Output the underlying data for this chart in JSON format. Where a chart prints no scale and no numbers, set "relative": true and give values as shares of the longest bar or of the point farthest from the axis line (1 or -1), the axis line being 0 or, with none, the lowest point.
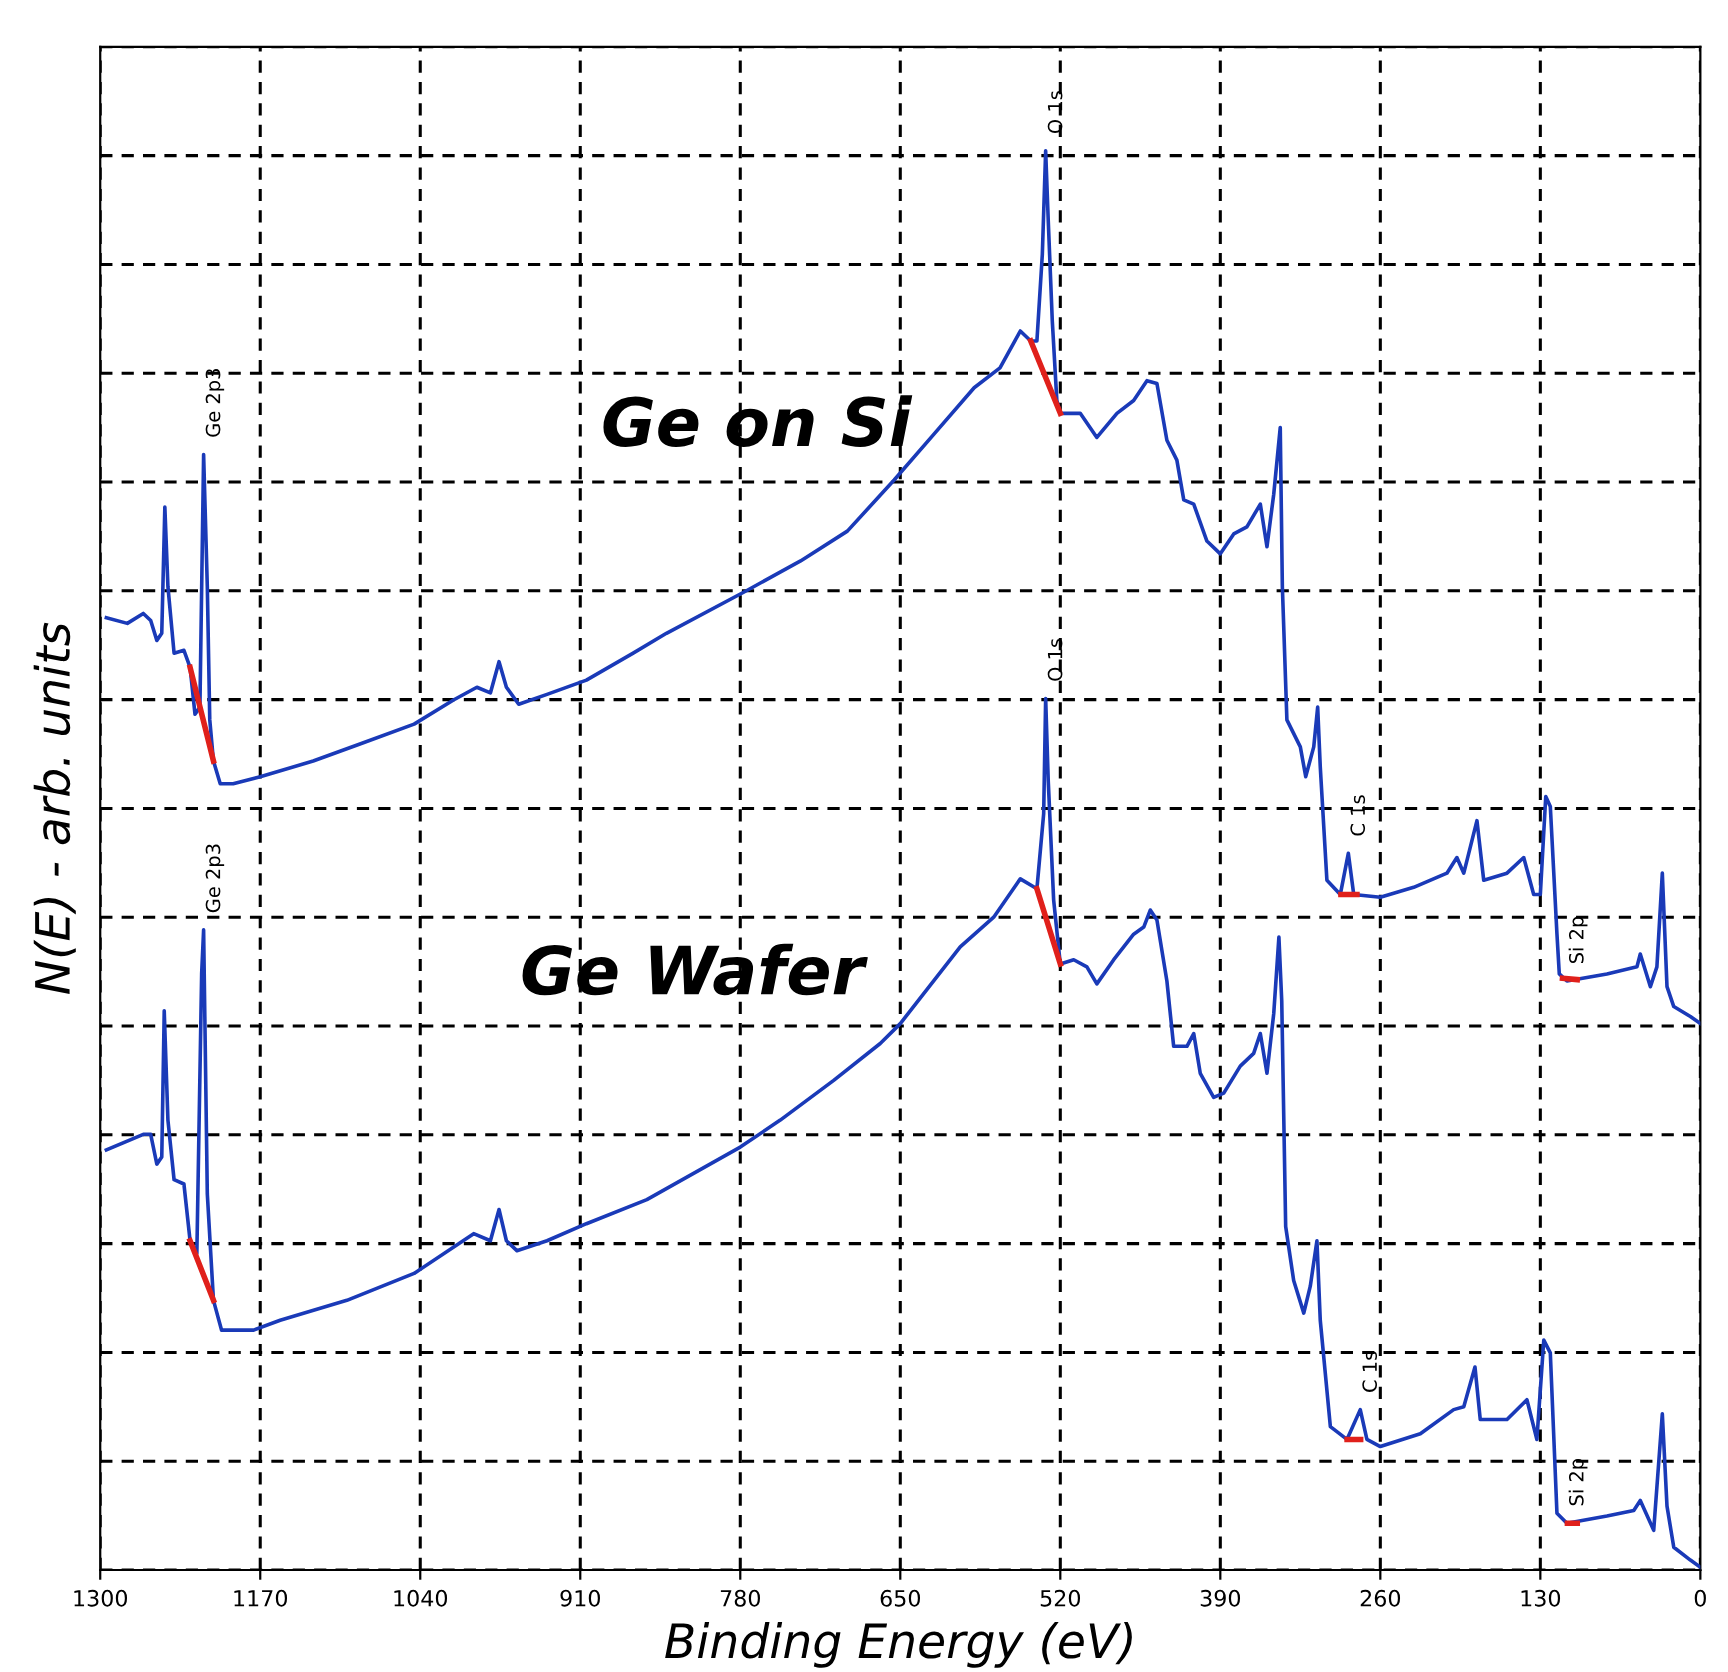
{
  "chart_data": {
    "type": "line",
    "relative": true,
    "xlabel": "Binding Energy (eV)",
    "ylabel": "N(E) - arb. units",
    "xlim": [
      1300,
      0
    ],
    "xticks": [
      1300,
      1170,
      1040,
      910,
      780,
      650,
      520,
      390,
      260,
      130,
      0
    ],
    "grid": true,
    "legend": false,
    "tick_labels": "x",
    "marker": "none",
    "line_style": "solid",
    "series": [
      {
        "name": "Ge on Si",
        "color": "#1a3ab8",
        "x": [
          1295,
          1278,
          1265,
          1259,
          1254,
          1250,
          1247.5,
          1245,
          1240,
          1232,
          1227,
          1223,
          1219,
          1216,
          1213,
          1211,
          1208,
          1202.5,
          1192,
          1170,
          1127,
          1089,
          1045,
          1013,
          994,
          983,
          976,
          970,
          960,
          937,
          905,
          867,
          840,
          775,
          731,
          693,
          655,
          623,
          590,
          569,
          552.5,
          544,
          539,
          534.6,
          531.9,
          529.8,
          526.5,
          522.8,
          520,
          503.8,
          490.3,
          474,
          460.4,
          449.6,
          441.5,
          433.4,
          425.3,
          419.7,
          411.6,
          400.9,
          390,
          379.1,
          368.4,
          357.5,
          352.1,
          346.6,
          341.3,
          339.6,
          335.9,
          325,
          320.6,
          314.1,
          310.9,
          308.8,
          303.4,
          292.5,
          286,
          281.6,
          260,
          232.9,
          205.9,
          197.8,
          192.2,
          181.5,
          176,
          157.1,
          143.5,
          135.4,
          130,
          125.6,
          121.9,
          116.5,
          114.6,
          108.4,
          75.9,
          51.5,
          48.8,
          40.6,
          35.3,
          30.9,
          27.1,
          21.6,
          8.1,
          0
        ],
        "values": [
          0.671,
          0.667,
          0.674,
          0.669,
          0.655,
          0.66,
          0.749,
          0.693,
          0.646,
          0.648,
          0.636,
          0.603,
          0.608,
          0.786,
          0.693,
          0.599,
          0.57,
          0.554,
          0.554,
          0.559,
          0.57,
          0.582,
          0.596,
          0.613,
          0.622,
          0.618,
          0.64,
          0.622,
          0.61,
          0.617,
          0.627,
          0.646,
          0.66,
          0.69,
          0.711,
          0.732,
          0.768,
          0.8,
          0.833,
          0.847,
          0.873,
          0.866,
          0.866,
          0.927,
          1,
          0.951,
          0.88,
          0.824,
          0.815,
          0.815,
          0.798,
          0.815,
          0.824,
          0.838,
          0.836,
          0.796,
          0.782,
          0.754,
          0.751,
          0.725,
          0.716,
          0.73,
          0.735,
          0.751,
          0.721,
          0.758,
          0.805,
          0.693,
          0.599,
          0.58,
          0.559,
          0.58,
          0.608,
          0.566,
          0.486,
          0.476,
          0.505,
          0.476,
          0.474,
          0.481,
          0.491,
          0.502,
          0.491,
          0.528,
          0.486,
          0.491,
          0.502,
          0.476,
          0.476,
          0.545,
          0.538,
          0.448,
          0.42,
          0.415,
          0.42,
          0.425,
          0.434,
          0.411,
          0.425,
          0.491,
          0.411,
          0.397,
          0.39,
          0.385
        ]
      },
      {
        "name": "Ge Wafer",
        "color": "#1a3ab8",
        "x": [
          1295,
          1265,
          1259,
          1254,
          1250,
          1248,
          1245,
          1240,
          1232,
          1227,
          1221.5,
          1217.6,
          1216,
          1213,
          1208,
          1201.4,
          1175.4,
          1153.8,
          1099.6,
          1045,
          996.6,
          983,
          976,
          970,
          961.5,
          937,
          905,
          855.9,
          780,
          747.5,
          704.1,
          666.3,
          650,
          601.3,
          574.1,
          552.5,
          539,
          533.5,
          531.9,
          529.8,
          525.4,
          520,
          509.1,
          498.4,
          490.3,
          476.6,
          460.4,
          452.2,
          446.9,
          441.5,
          433.4,
          427.9,
          417.1,
          411.6,
          406.3,
          395.4,
          387.2,
          373.8,
          362.9,
          357.5,
          352.1,
          346.6,
          342.4,
          340.1,
          336.9,
          330.4,
          322.2,
          316.9,
          311.5,
          308.8,
          300.6,
          287.1,
          276.3,
          270.9,
          260,
          227.5,
          200.4,
          192.2,
          183.1,
          178.8,
          157.1,
          140.9,
          132.8,
          127.2,
          121.9,
          116.5,
          108.4,
          75.9,
          54.1,
          48.8,
          37.9,
          30.9,
          27.1,
          21.6,
          8.1,
          0
        ],
        "values": [
          0.296,
          0.307,
          0.307,
          0.286,
          0.291,
          0.394,
          0.317,
          0.275,
          0.272,
          0.232,
          0.223,
          0.42,
          0.451,
          0.265,
          0.19,
          0.169,
          0.169,
          0.176,
          0.19,
          0.209,
          0.237,
          0.232,
          0.254,
          0.232,
          0.225,
          0.232,
          0.244,
          0.261,
          0.298,
          0.317,
          0.345,
          0.371,
          0.385,
          0.439,
          0.46,
          0.487,
          0.48,
          0.533,
          0.614,
          0.556,
          0.472,
          0.427,
          0.43,
          0.425,
          0.413,
          0.43,
          0.448,
          0.453,
          0.465,
          0.458,
          0.415,
          0.369,
          0.369,
          0.378,
          0.35,
          0.333,
          0.336,
          0.355,
          0.364,
          0.378,
          0.35,
          0.392,
          0.446,
          0.401,
          0.242,
          0.204,
          0.181,
          0.2,
          0.232,
          0.176,
          0.101,
          0.092,
          0.113,
          0.092,
          0.087,
          0.096,
          0.113,
          0.115,
          0.143,
          0.106,
          0.106,
          0.12,
          0.092,
          0.162,
          0.153,
          0.04,
          0.033,
          0.038,
          0.042,
          0.049,
          0.028,
          0.11,
          0.045,
          0.016,
          0.007,
          0.002
        ]
      },
      {
        "color": "#e0201b",
        "x": [
          1227,
          1208,
          1200,
          544,
          520,
          510,
          292,
          279,
          270,
          112,
          100
        ],
        "values": [
          0.636,
          0.57,
          null,
          0.866,
          0.815,
          null,
          0.476,
          0.476,
          null,
          0.417,
          0.416
        ]
      },
      {
        "color": "#e0201b",
        "x": [
          1227,
          1208,
          1200,
          539,
          520,
          510,
          287,
          276,
          270,
          108,
          100
        ],
        "values": [
          0.232,
          0.19,
          null,
          0.48,
          0.427,
          null,
          0.092,
          0.092,
          null,
          0.033,
          0.033
        ]
      }
    ],
    "annotations": [
      {
        "text": "Ge 2p3",
        "x": 1216,
        "y": 0.786
      },
      {
        "text": "O 1s",
        "x": 531.9,
        "y": 1
      },
      {
        "text": "C 1s",
        "x": 286,
        "y": 0.505
      },
      {
        "text": "Si 2p",
        "x": 108.4,
        "y": 0.415
      },
      {
        "text": "Ge 2p3",
        "x": 1216,
        "y": 0.451
      },
      {
        "text": "O 1s",
        "x": 531.9,
        "y": 0.614
      },
      {
        "text": "C 1s",
        "x": 276.3,
        "y": 0.113
      },
      {
        "text": "Si 2p",
        "x": 108.4,
        "y": 0.033
      }
    ]
  }
}
